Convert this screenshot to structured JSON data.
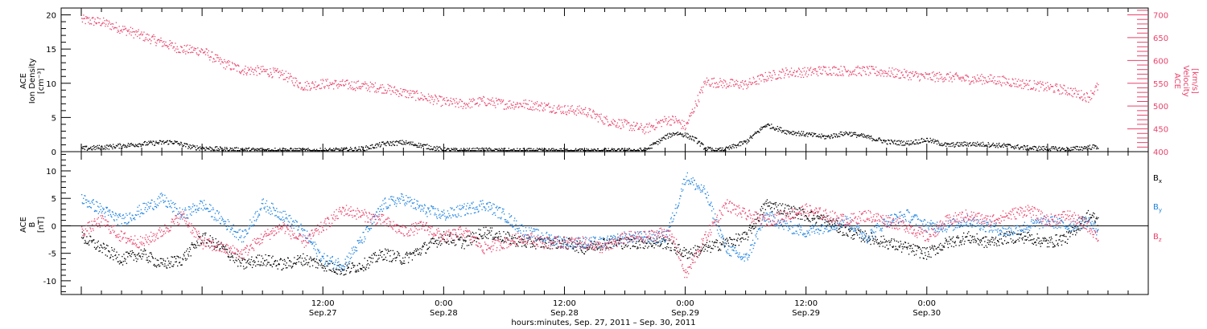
{
  "colors": {
    "density": "#000000",
    "velocity": "#e8436b",
    "bx": "#000000",
    "by": "#1e82e0",
    "bz": "#e8436b",
    "frame": "#000000"
  },
  "chart_data": [
    {
      "type": "scatter",
      "panel": "top",
      "ylabel_left": [
        "ACE",
        "Ion Density",
        "[cm⁻³]"
      ],
      "ylabel_right": [
        "ACE",
        "Velocity",
        "[km/s]"
      ],
      "ylim_left": [
        0,
        21
      ],
      "yticks_left": [
        0,
        5,
        10,
        15,
        20
      ],
      "ylim_right": [
        400,
        715
      ],
      "yticks_right": [
        400,
        450,
        500,
        550,
        600,
        650,
        700
      ],
      "xlim_hours": [
        -38,
        70
      ],
      "series": [
        {
          "axis": "left",
          "color_key": "density",
          "x_hours": [
            -36,
            -33,
            -30,
            -27,
            -25,
            -22,
            -19,
            -16,
            -13,
            -10,
            -8,
            -6,
            -4,
            -2,
            0,
            2,
            4,
            6,
            8,
            10,
            12,
            14,
            16,
            18,
            20,
            22,
            23,
            24,
            25,
            26,
            27,
            28,
            30,
            32,
            34,
            36,
            38,
            40,
            42,
            44,
            46,
            48,
            50,
            52,
            54,
            56,
            58,
            60,
            62,
            64,
            65
          ],
          "values": [
            0.5,
            0.8,
            1.2,
            1.5,
            0.7,
            0.4,
            0.3,
            0.3,
            0.2,
            0.3,
            0.5,
            1.2,
            1.4,
            0.9,
            0.3,
            0.2,
            0.3,
            0.2,
            0.2,
            0.2,
            0.2,
            0.2,
            0.2,
            0.2,
            0.3,
            2.2,
            2.8,
            2.5,
            1.8,
            0.5,
            0.2,
            0.4,
            1.5,
            4.0,
            3.0,
            2.6,
            2.2,
            2.8,
            2.2,
            1.5,
            1.3,
            1.8,
            1.0,
            1.2,
            1.1,
            0.9,
            0.6,
            0.5,
            0.4,
            0.7,
            0.8
          ]
        },
        {
          "axis": "right",
          "color_key": "velocity",
          "x_hours": [
            -36,
            -34,
            -32,
            -30,
            -28,
            -26,
            -24,
            -22,
            -20,
            -18,
            -16,
            -14,
            -12,
            -10,
            -8,
            -6,
            -4,
            -2,
            0,
            2,
            4,
            6,
            8,
            10,
            12,
            14,
            16,
            18,
            20,
            22,
            23,
            24,
            26,
            28,
            30,
            32,
            34,
            36,
            38,
            40,
            42,
            44,
            46,
            48,
            50,
            52,
            54,
            56,
            58,
            60,
            62,
            64,
            65
          ],
          "values": [
            690,
            685,
            670,
            655,
            640,
            625,
            622,
            595,
            580,
            578,
            570,
            545,
            550,
            548,
            545,
            540,
            530,
            520,
            510,
            505,
            512,
            505,
            505,
            500,
            493,
            490,
            470,
            460,
            450,
            470,
            470,
            455,
            555,
            550,
            548,
            565,
            575,
            575,
            580,
            578,
            578,
            575,
            570,
            565,
            565,
            560,
            560,
            555,
            548,
            542,
            535,
            520,
            545
          ]
        }
      ]
    },
    {
      "type": "scatter",
      "panel": "bottom",
      "ylabel": [
        "ACE",
        "B",
        "[nT]"
      ],
      "ylim": [
        -12.5,
        13.5
      ],
      "yticks": [
        -10,
        -5,
        0,
        5,
        10
      ],
      "xlim_hours": [
        -38,
        70
      ],
      "xticks": [
        {
          "hour": -12,
          "label_time": "12:00",
          "label_date": "Sep.27"
        },
        {
          "hour": 0,
          "label_time": "0:00",
          "label_date": "Sep.28"
        },
        {
          "hour": 12,
          "label_time": "12:00",
          "label_date": "Sep.28"
        },
        {
          "hour": 24,
          "label_time": "0:00",
          "label_date": "Sep.29"
        },
        {
          "hour": 36,
          "label_time": "12:00",
          "label_date": "Sep.29"
        },
        {
          "hour": 48,
          "label_time": "0:00",
          "label_date": "Sep.30"
        }
      ],
      "xlabel": "hours:minutes, Sep. 27, 2011 – Sep. 30, 2011",
      "series": [
        {
          "name": "Bx",
          "name_main": "B",
          "name_sub": "x",
          "color_key": "bx",
          "x_hours": [
            -36,
            -34,
            -32,
            -30,
            -28,
            -26,
            -24,
            -22,
            -20,
            -18,
            -16,
            -14,
            -12,
            -10,
            -8,
            -6,
            -4,
            -2,
            0,
            2,
            4,
            6,
            8,
            10,
            12,
            14,
            16,
            18,
            20,
            22,
            23,
            24,
            26,
            28,
            30,
            32,
            34,
            36,
            38,
            40,
            42,
            44,
            46,
            48,
            50,
            52,
            54,
            56,
            58,
            60,
            62,
            64,
            65
          ],
          "values": [
            -2,
            -4,
            -6,
            -5,
            -7,
            -6,
            -2,
            -4,
            -7,
            -6,
            -7,
            -6,
            -7,
            -8,
            -7,
            -5,
            -6,
            -4,
            -2,
            -3,
            -1,
            -2,
            -3,
            -3,
            -3,
            -4,
            -3,
            -3,
            -3,
            -3,
            -4,
            -5,
            -4,
            -3,
            -2,
            4,
            3,
            2,
            1,
            -1,
            -2,
            -3,
            -4,
            -5,
            -3,
            -2,
            -3,
            -2,
            -2,
            -3,
            -2,
            2,
            1
          ]
        },
        {
          "name": "By",
          "name_main": "B",
          "name_sub": "y",
          "color_key": "by",
          "x_hours": [
            -36,
            -34,
            -32,
            -30,
            -28,
            -26,
            -24,
            -22,
            -20,
            -18,
            -16,
            -14,
            -12,
            -10,
            -8,
            -6,
            -4,
            -2,
            0,
            2,
            4,
            6,
            8,
            10,
            12,
            14,
            16,
            18,
            20,
            22,
            23,
            24,
            26,
            28,
            30,
            32,
            34,
            36,
            38,
            40,
            42,
            44,
            46,
            48,
            50,
            52,
            54,
            56,
            58,
            60,
            62,
            64,
            65
          ],
          "values": [
            5,
            3,
            1,
            3,
            5,
            2,
            4,
            1,
            -2,
            4,
            2,
            -1,
            -6,
            -7,
            -2,
            4,
            5,
            3,
            2,
            3,
            4,
            2,
            -1,
            -2,
            -3,
            -3,
            -3,
            -2,
            -2,
            -2,
            3,
            9,
            6,
            -4,
            -6,
            2,
            0,
            -1,
            0,
            1,
            -2,
            1,
            2,
            0,
            0,
            1,
            0,
            -1,
            0,
            1,
            0,
            1,
            -1
          ]
        },
        {
          "name": "Bz",
          "name_main": "B",
          "name_sub": "z",
          "color_key": "bz",
          "x_hours": [
            -36,
            -34,
            -32,
            -30,
            -28,
            -26,
            -24,
            -22,
            -20,
            -18,
            -16,
            -14,
            -12,
            -10,
            -8,
            -6,
            -4,
            -2,
            0,
            2,
            4,
            6,
            8,
            10,
            12,
            14,
            16,
            18,
            20,
            22,
            23,
            24,
            26,
            28,
            30,
            32,
            34,
            36,
            38,
            40,
            42,
            44,
            46,
            48,
            50,
            52,
            54,
            56,
            58,
            60,
            62,
            64,
            65
          ],
          "values": [
            -1,
            1,
            -2,
            -3,
            -1,
            2,
            -3,
            -4,
            -5,
            -2,
            0,
            -3,
            0,
            3,
            2,
            1,
            -1,
            0,
            -2,
            -1,
            -4,
            -3,
            -2,
            -3,
            -3,
            -3,
            -4,
            -2,
            -2,
            -1,
            -3,
            -9,
            -2,
            4,
            2,
            1,
            2,
            3,
            2,
            1,
            2,
            1,
            0,
            -2,
            1,
            2,
            1,
            2,
            3,
            1,
            2,
            0,
            -2
          ]
        }
      ]
    }
  ]
}
